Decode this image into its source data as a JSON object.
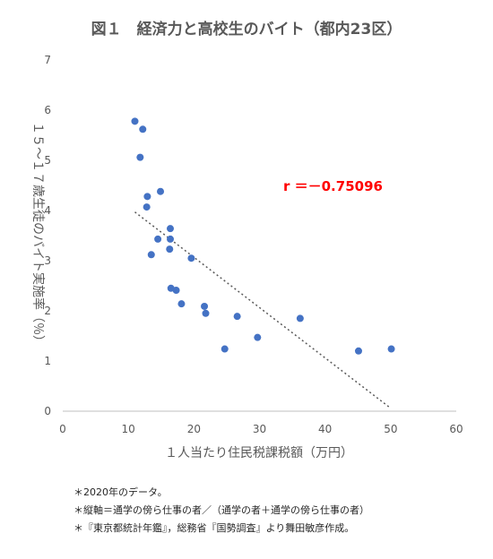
{
  "chart_data": {
    "type": "scatter",
    "title": "図１　経済力と高校生のバイト（都内23区）",
    "xlabel": "１人当たり住民税課税額（万円）",
    "ylabel": "１５～１７歳生徒のバイト実施率（％）",
    "xlim": [
      0,
      60
    ],
    "ylim": [
      0,
      7
    ],
    "x_ticks": [
      "0",
      "10",
      "20",
      "30",
      "40",
      "50",
      "60"
    ],
    "y_ticks": [
      "0",
      "1",
      "2",
      "3",
      "4",
      "5",
      "6",
      "7"
    ],
    "grid": false,
    "marker_color": "#4472c4",
    "trendline_color": "#595959",
    "annotation_color": "#ff0000",
    "points": [
      {
        "x": 11.0,
        "y": 5.78
      },
      {
        "x": 12.2,
        "y": 5.62
      },
      {
        "x": 11.8,
        "y": 5.06
      },
      {
        "x": 12.9,
        "y": 4.28
      },
      {
        "x": 14.9,
        "y": 4.38
      },
      {
        "x": 12.8,
        "y": 4.07
      },
      {
        "x": 16.4,
        "y": 3.64
      },
      {
        "x": 14.5,
        "y": 3.43
      },
      {
        "x": 16.4,
        "y": 3.43
      },
      {
        "x": 16.3,
        "y": 3.23
      },
      {
        "x": 13.5,
        "y": 3.12
      },
      {
        "x": 19.6,
        "y": 3.05
      },
      {
        "x": 16.5,
        "y": 2.45
      },
      {
        "x": 17.3,
        "y": 2.41
      },
      {
        "x": 18.1,
        "y": 2.14
      },
      {
        "x": 21.6,
        "y": 2.09
      },
      {
        "x": 21.8,
        "y": 1.95
      },
      {
        "x": 26.6,
        "y": 1.89
      },
      {
        "x": 36.2,
        "y": 1.85
      },
      {
        "x": 29.7,
        "y": 1.47
      },
      {
        "x": 24.7,
        "y": 1.24
      },
      {
        "x": 45.1,
        "y": 1.2
      },
      {
        "x": 50.1,
        "y": 1.24
      }
    ],
    "trendline": {
      "x": [
        11,
        50
      ],
      "y": [
        3.97,
        0.06
      ]
    },
    "annotation": "r ＝－0.75096"
  },
  "notes": [
    "＊2020年のデータ。",
    "＊縦軸＝通学の傍ら仕事の者／（通学の者＋通学の傍ら仕事の者）",
    "＊『東京都統計年鑑』，総務省『国勢調査』より舞田敏彦作成。"
  ]
}
